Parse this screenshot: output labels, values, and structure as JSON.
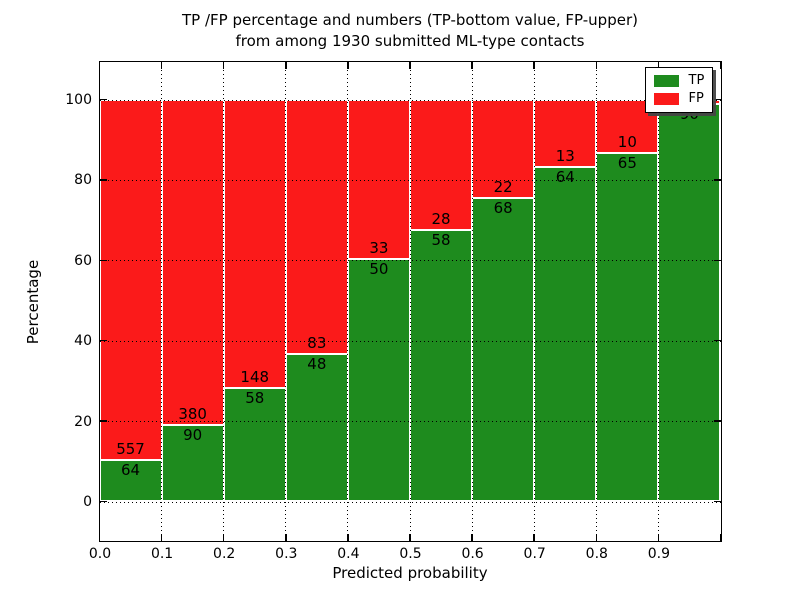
{
  "title": {
    "line1": "TP /FP percentage and numbers (TP-bottom value, FP-upper)",
    "line2": "from among 1930 submitted ML-type contacts"
  },
  "axes": {
    "xlabel": "Predicted probability",
    "ylabel": "Percentage",
    "x_tick_labels": [
      "0.0",
      "0.1",
      "0.2",
      "0.3",
      "0.4",
      "0.5",
      "0.6",
      "0.7",
      "0.8",
      "0.9"
    ],
    "y_tick_labels": [
      "0",
      "20",
      "40",
      "60",
      "80",
      "100"
    ],
    "y_tick_values": [
      0,
      20,
      40,
      60,
      80,
      100
    ],
    "xlim": [
      0.0,
      1.0
    ],
    "ylim": [
      -10,
      110
    ],
    "grid": "dotted black"
  },
  "legend": {
    "position": "upper right",
    "items": [
      {
        "label": "TP",
        "color": "#1e8b1e"
      },
      {
        "label": "FP",
        "color": "#fb1a1a"
      }
    ]
  },
  "colors": {
    "tp": "#1e8b1e",
    "fp": "#fb1a1a",
    "bar_edge": "#ffffff",
    "text": "#000000",
    "grid": "#000000"
  },
  "chart_data": {
    "type": "bar",
    "stacked": true,
    "orientation": "vertical",
    "normalized_to_percent": true,
    "title": "TP /FP percentage and numbers (TP-bottom value, FP-upper) from among 1930 submitted ML-type contacts",
    "xlabel": "Predicted probability",
    "ylabel": "Percentage",
    "xlim": [
      0.0,
      1.0
    ],
    "ylim": [
      -10,
      110
    ],
    "bin_width": 0.1,
    "total_contacts": 1930,
    "legend_position": "upper right",
    "grid": true,
    "categories": [
      "0.0",
      "0.1",
      "0.2",
      "0.3",
      "0.4",
      "0.5",
      "0.6",
      "0.7",
      "0.8",
      "0.9"
    ],
    "series": [
      {
        "name": "TP",
        "color": "#1e8b1e",
        "counts": [
          64,
          90,
          58,
          48,
          50,
          58,
          68,
          64,
          65,
          90
        ]
      },
      {
        "name": "FP",
        "color": "#fb1a1a",
        "counts": [
          557,
          380,
          148,
          83,
          33,
          28,
          22,
          13,
          10,
          1
        ]
      }
    ],
    "bars": [
      {
        "bin_start": 0.0,
        "tp": 64,
        "fp": 557,
        "tp_pct": 10.3,
        "tp_label": "64",
        "fp_label": "557"
      },
      {
        "bin_start": 0.1,
        "tp": 90,
        "fp": 380,
        "tp_pct": 19.1,
        "tp_label": "90",
        "fp_label": "380"
      },
      {
        "bin_start": 0.2,
        "tp": 58,
        "fp": 148,
        "tp_pct": 28.2,
        "tp_label": "58",
        "fp_label": "148"
      },
      {
        "bin_start": 0.3,
        "tp": 48,
        "fp": 83,
        "tp_pct": 36.6,
        "tp_label": "48",
        "fp_label": "83"
      },
      {
        "bin_start": 0.4,
        "tp": 50,
        "fp": 33,
        "tp_pct": 60.2,
        "tp_label": "50",
        "fp_label": "33"
      },
      {
        "bin_start": 0.5,
        "tp": 58,
        "fp": 28,
        "tp_pct": 67.4,
        "tp_label": "58",
        "fp_label": "28"
      },
      {
        "bin_start": 0.6,
        "tp": 68,
        "fp": 22,
        "tp_pct": 75.6,
        "tp_label": "68",
        "fp_label": "22"
      },
      {
        "bin_start": 0.7,
        "tp": 64,
        "fp": 13,
        "tp_pct": 83.1,
        "tp_label": "64",
        "fp_label": "13"
      },
      {
        "bin_start": 0.8,
        "tp": 65,
        "fp": 10,
        "tp_pct": 86.7,
        "tp_label": "65",
        "fp_label": "10"
      },
      {
        "bin_start": 0.9,
        "tp": 90,
        "fp": 1,
        "tp_pct": 98.9,
        "tp_label": "90",
        "fp_label": ""
      }
    ]
  }
}
